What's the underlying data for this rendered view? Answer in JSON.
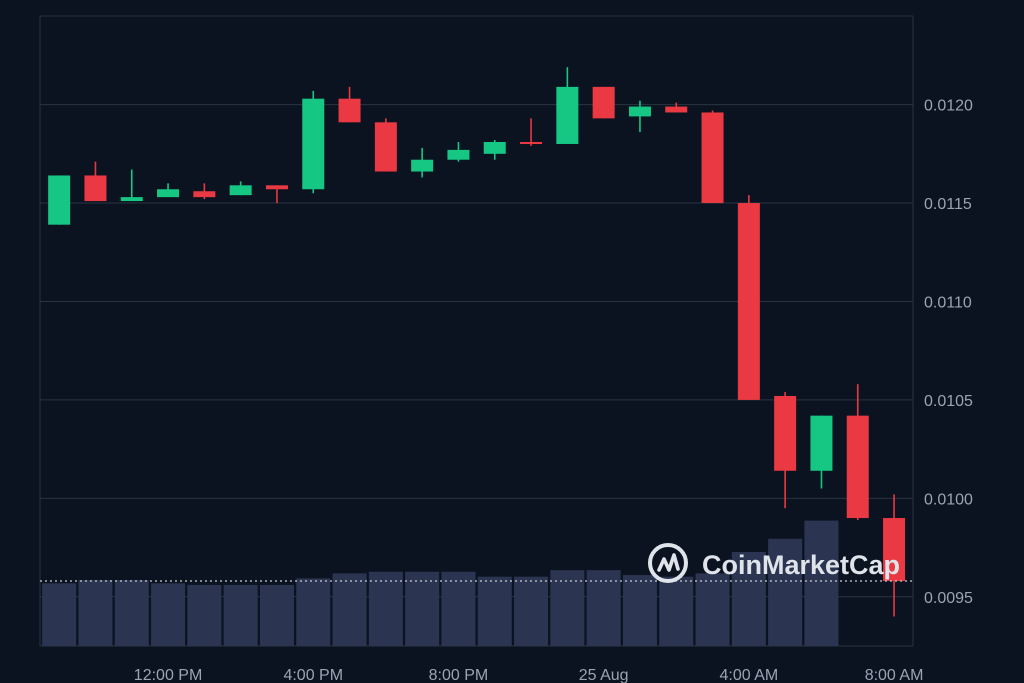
{
  "brand": {
    "watermark_text": "CoinMarketCap",
    "watermark_icon": "coinmarketcap-logo-icon"
  },
  "colors": {
    "background": "#0b1320",
    "grid": "#2a3441",
    "up": "#16c784",
    "down": "#ea3943",
    "volume": "#2b3552",
    "axis_text": "#9aa4b2",
    "current_price_line": "#c6ccd4"
  },
  "chart_data": {
    "type": "candlestick",
    "title": "",
    "xlabel": "",
    "ylabel": "",
    "ylim": [
      0.00925,
      0.01245
    ],
    "y_ticks": [
      0.0095,
      0.01,
      0.0105,
      0.011,
      0.0115,
      0.012
    ],
    "y_tick_labels": [
      "0.0095",
      "0.0100",
      "0.0105",
      "0.0110",
      "0.0115",
      "0.0120"
    ],
    "x_ticks": [
      {
        "label": "12:00 PM",
        "index": 3
      },
      {
        "label": "4:00 PM",
        "index": 7
      },
      {
        "label": "8:00 PM",
        "index": 11
      },
      {
        "label": "25 Aug",
        "index": 15
      },
      {
        "label": "4:00 AM",
        "index": 19
      },
      {
        "label": "8:00 AM",
        "index": 23
      }
    ],
    "current_price": 0.00958,
    "grid": true,
    "candles": [
      {
        "open": 0.01139,
        "high": 0.01164,
        "low": 0.01139,
        "close": 0.01164
      },
      {
        "open": 0.01164,
        "high": 0.01171,
        "low": 0.01151,
        "close": 0.01151
      },
      {
        "open": 0.01151,
        "high": 0.01167,
        "low": 0.01151,
        "close": 0.01153
      },
      {
        "open": 0.01153,
        "high": 0.0116,
        "low": 0.01153,
        "close": 0.01157
      },
      {
        "open": 0.01156,
        "high": 0.0116,
        "low": 0.01152,
        "close": 0.01153
      },
      {
        "open": 0.01154,
        "high": 0.01161,
        "low": 0.01154,
        "close": 0.01159
      },
      {
        "open": 0.01159,
        "high": 0.01159,
        "low": 0.0115,
        "close": 0.01157
      },
      {
        "open": 0.01157,
        "high": 0.01207,
        "low": 0.01155,
        "close": 0.01203
      },
      {
        "open": 0.01203,
        "high": 0.01209,
        "low": 0.01191,
        "close": 0.01191
      },
      {
        "open": 0.01191,
        "high": 0.01193,
        "low": 0.01166,
        "close": 0.01166
      },
      {
        "open": 0.01166,
        "high": 0.01178,
        "low": 0.01163,
        "close": 0.01172
      },
      {
        "open": 0.01172,
        "high": 0.01181,
        "low": 0.01171,
        "close": 0.01177
      },
      {
        "open": 0.01175,
        "high": 0.01182,
        "low": 0.01172,
        "close": 0.01181
      },
      {
        "open": 0.01181,
        "high": 0.01193,
        "low": 0.01179,
        "close": 0.0118
      },
      {
        "open": 0.0118,
        "high": 0.01219,
        "low": 0.0118,
        "close": 0.01209
      },
      {
        "open": 0.01209,
        "high": 0.01209,
        "low": 0.01193,
        "close": 0.01193
      },
      {
        "open": 0.01194,
        "high": 0.01202,
        "low": 0.01186,
        "close": 0.01199
      },
      {
        "open": 0.01199,
        "high": 0.01201,
        "low": 0.01196,
        "close": 0.01196
      },
      {
        "open": 0.01196,
        "high": 0.01197,
        "low": 0.0115,
        "close": 0.0115
      },
      {
        "open": 0.0115,
        "high": 0.01154,
        "low": 0.0105,
        "close": 0.0105
      },
      {
        "open": 0.01052,
        "high": 0.01054,
        "low": 0.00995,
        "close": 0.01014
      },
      {
        "open": 0.01014,
        "high": 0.01042,
        "low": 0.01005,
        "close": 0.01042
      },
      {
        "open": 0.01042,
        "high": 0.01058,
        "low": 0.00989,
        "close": 0.0099
      },
      {
        "open": 0.0099,
        "high": 0.01002,
        "low": 0.0094,
        "close": 0.00958
      }
    ],
    "volume": [
      19,
      20,
      20,
      19,
      18.5,
      18.5,
      18.5,
      20.5,
      22,
      22.5,
      22.5,
      22.5,
      21,
      21,
      23,
      23,
      21.5,
      21,
      22,
      28.5,
      32.5,
      38,
      0,
      0
    ]
  }
}
